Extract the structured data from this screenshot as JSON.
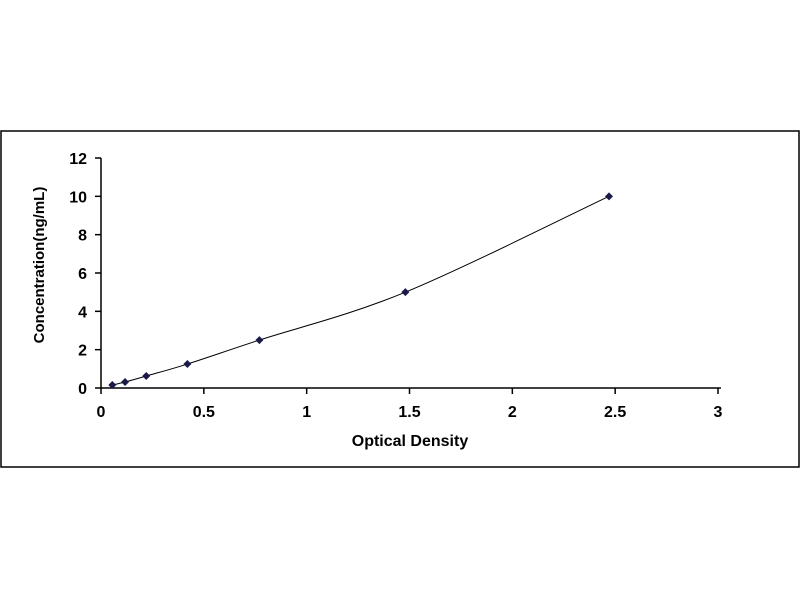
{
  "chart_data": {
    "type": "scatter",
    "title": "",
    "xlabel": "Optical Density",
    "ylabel": "Concentration(ng/mL)",
    "xlim": [
      0,
      3
    ],
    "ylim": [
      0,
      12
    ],
    "xticks": [
      "0",
      "0.5",
      "1",
      "1.5",
      "2",
      "2.5",
      "3"
    ],
    "yticks": [
      "0",
      "2",
      "4",
      "6",
      "8",
      "10",
      "12"
    ],
    "grid": false,
    "marker_color": "#1a1a4a",
    "line_color": "#000000",
    "points": [
      {
        "x": 0.055,
        "y": 0.156
      },
      {
        "x": 0.117,
        "y": 0.312
      },
      {
        "x": 0.22,
        "y": 0.625
      },
      {
        "x": 0.42,
        "y": 1.25
      },
      {
        "x": 0.77,
        "y": 2.5
      },
      {
        "x": 1.48,
        "y": 5
      },
      {
        "x": 2.47,
        "y": 10
      }
    ]
  }
}
